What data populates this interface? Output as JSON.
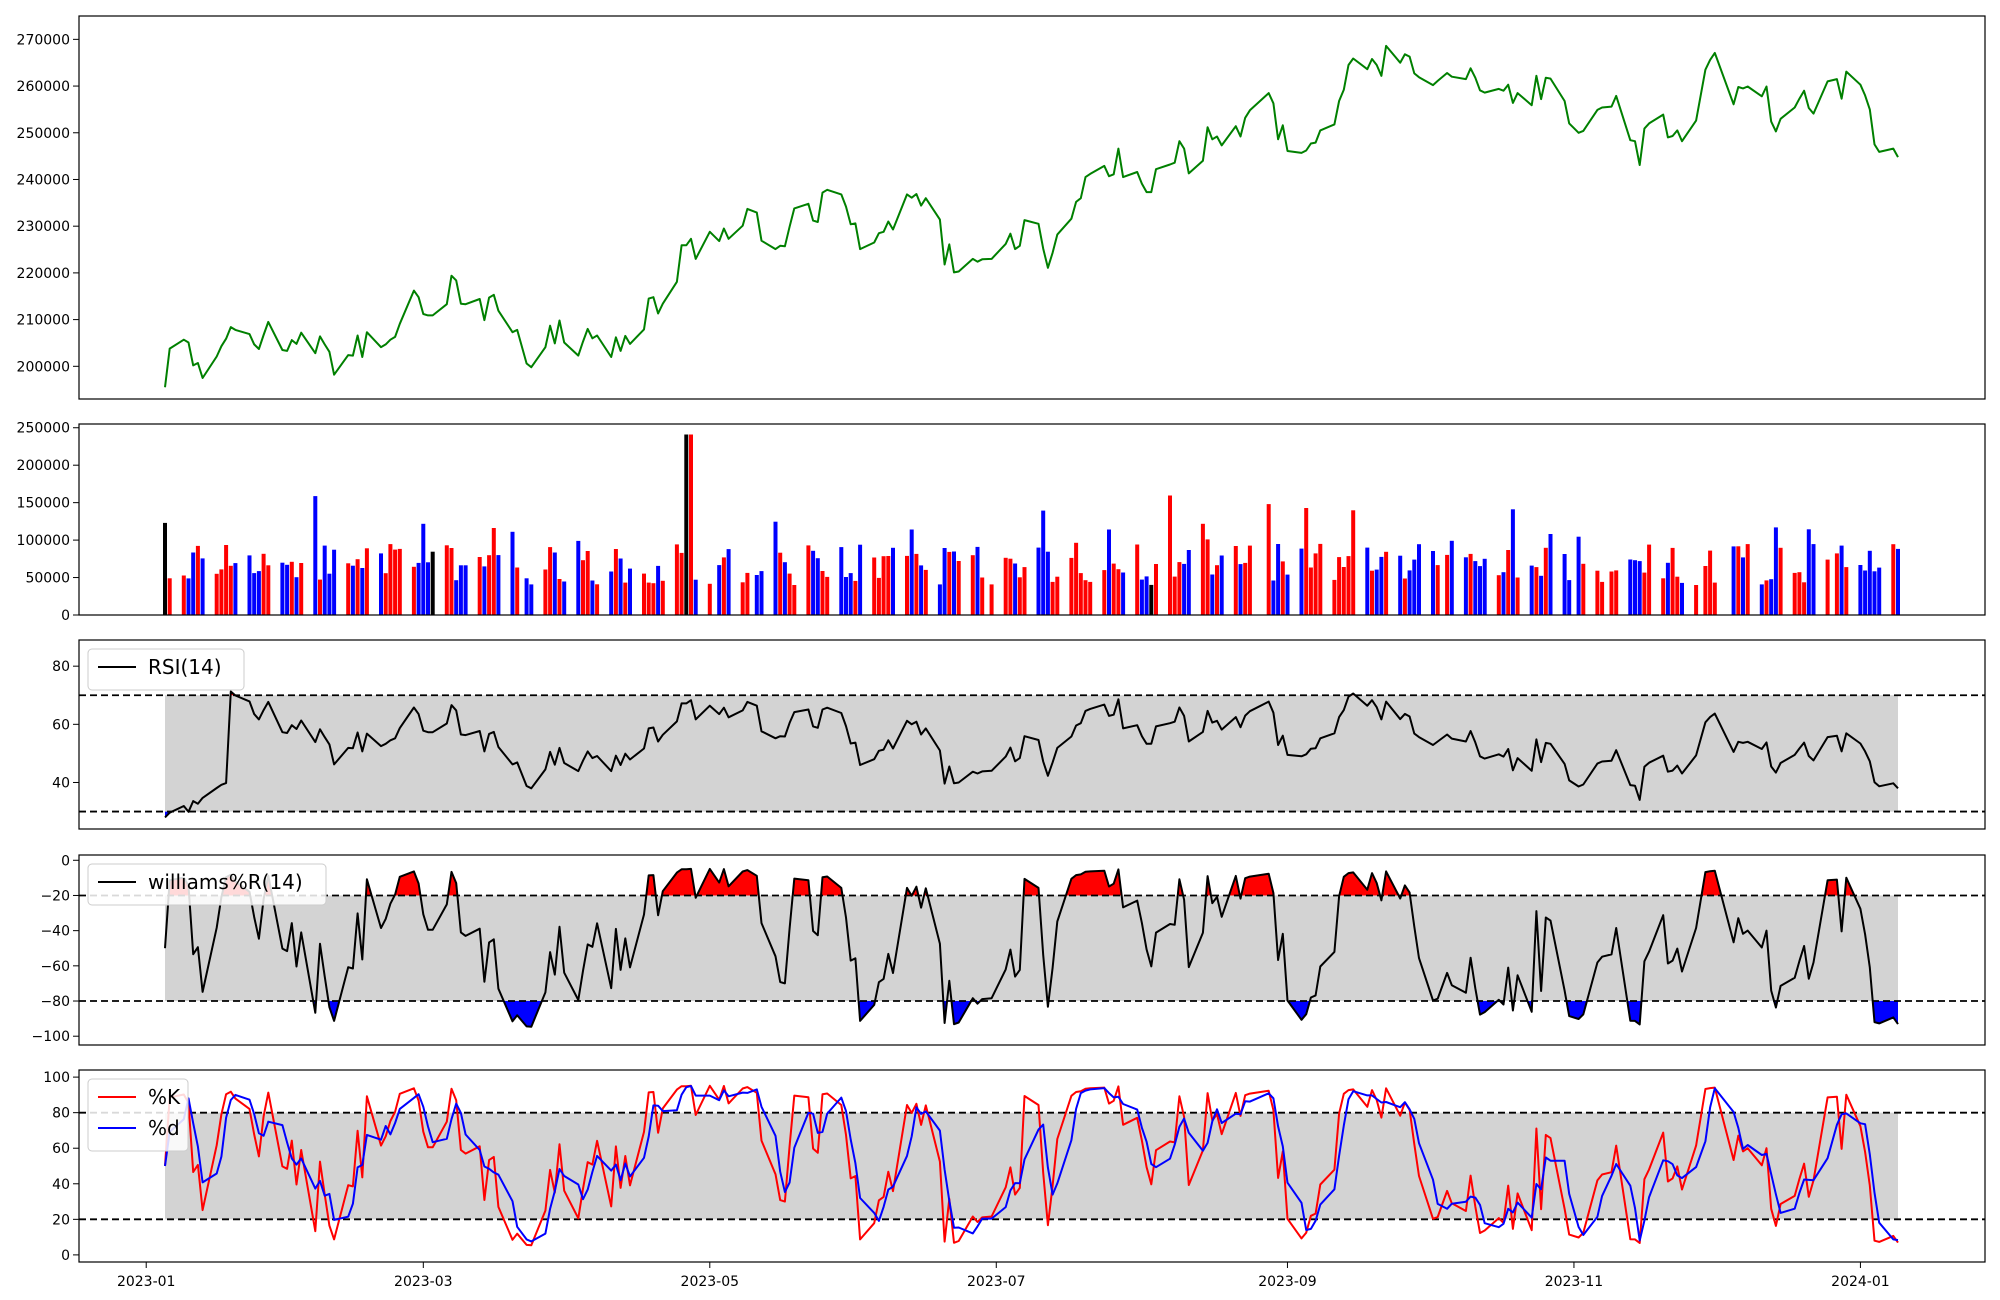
{
  "chart_data": [
    {
      "type": "line",
      "series": [
        {
          "color": "#008000",
          "values": []
        }
      ],
      "ylim": [
        193000,
        275000
      ],
      "yticks": [
        200000,
        210000,
        220000,
        230000,
        240000,
        250000,
        260000,
        270000
      ],
      "ytick_labels": [
        "200000",
        "210000",
        "220000",
        "230000",
        "240000",
        "250000",
        "260000",
        "270000"
      ]
    },
    {
      "type": "bar",
      "colors": {
        "up": "#ff0000",
        "down": "#0000ff",
        "flat": "#000000"
      },
      "values": [],
      "ylim": [
        0,
        255000
      ],
      "yticks": [
        0,
        50000,
        100000,
        150000,
        200000,
        250000
      ],
      "ytick_labels": [
        "0",
        "50000",
        "100000",
        "150000",
        "200000",
        "250000"
      ]
    },
    {
      "type": "line",
      "legend": [
        "RSI(14)"
      ],
      "legend_position": "upper left",
      "series": [
        {
          "name": "RSI(14)",
          "color": "#000000",
          "values": []
        }
      ],
      "ylim": [
        24,
        89
      ],
      "bands": {
        "upper": 70,
        "lower": 30
      },
      "yticks": [
        40,
        60,
        80
      ],
      "ytick_labels": [
        "40",
        "60",
        "80"
      ]
    },
    {
      "type": "line",
      "legend": [
        "williams%R(14)"
      ],
      "legend_position": "upper left",
      "series": [
        {
          "name": "williams%R(14)",
          "color": "#000000",
          "values": []
        }
      ],
      "ylim": [
        -105,
        3
      ],
      "bands": {
        "upper": -20,
        "lower": -80
      },
      "yticks": [
        -100,
        -80,
        -60,
        -40,
        -20,
        0
      ],
      "ytick_labels": [
        "−100",
        "−80",
        "−60",
        "−40",
        "−20",
        "0"
      ]
    },
    {
      "type": "line",
      "legend": [
        "%K",
        "%d"
      ],
      "legend_position": "upper left",
      "series": [
        {
          "name": "%K",
          "color": "#ff0000",
          "values": []
        },
        {
          "name": "%d",
          "color": "#0000ff",
          "values": []
        }
      ],
      "ylim": [
        -4,
        104
      ],
      "bands": {
        "upper": 80,
        "lower": 20
      },
      "yticks": [
        0,
        20,
        40,
        60,
        80,
        100
      ],
      "ytick_labels": [
        "0",
        "20",
        "40",
        "60",
        "80",
        "100"
      ]
    }
  ],
  "x": {
    "start": "2023-01-05",
    "end": "2024-01-10",
    "ticks": [
      "2023-01-01",
      "2023-03-01",
      "2023-05-01",
      "2023-07-01",
      "2023-09-01",
      "2023-11-01",
      "2024-01-01"
    ],
    "tick_labels": [
      "2023-01",
      "2023-03",
      "2023-05",
      "2023-07",
      "2023-09",
      "2023-11",
      "2024-01"
    ],
    "dates": []
  },
  "colors": {
    "band_fill": "#d3d3d3",
    "overbought_fill": "#ff0000",
    "oversold_fill": "#0000ff"
  }
}
